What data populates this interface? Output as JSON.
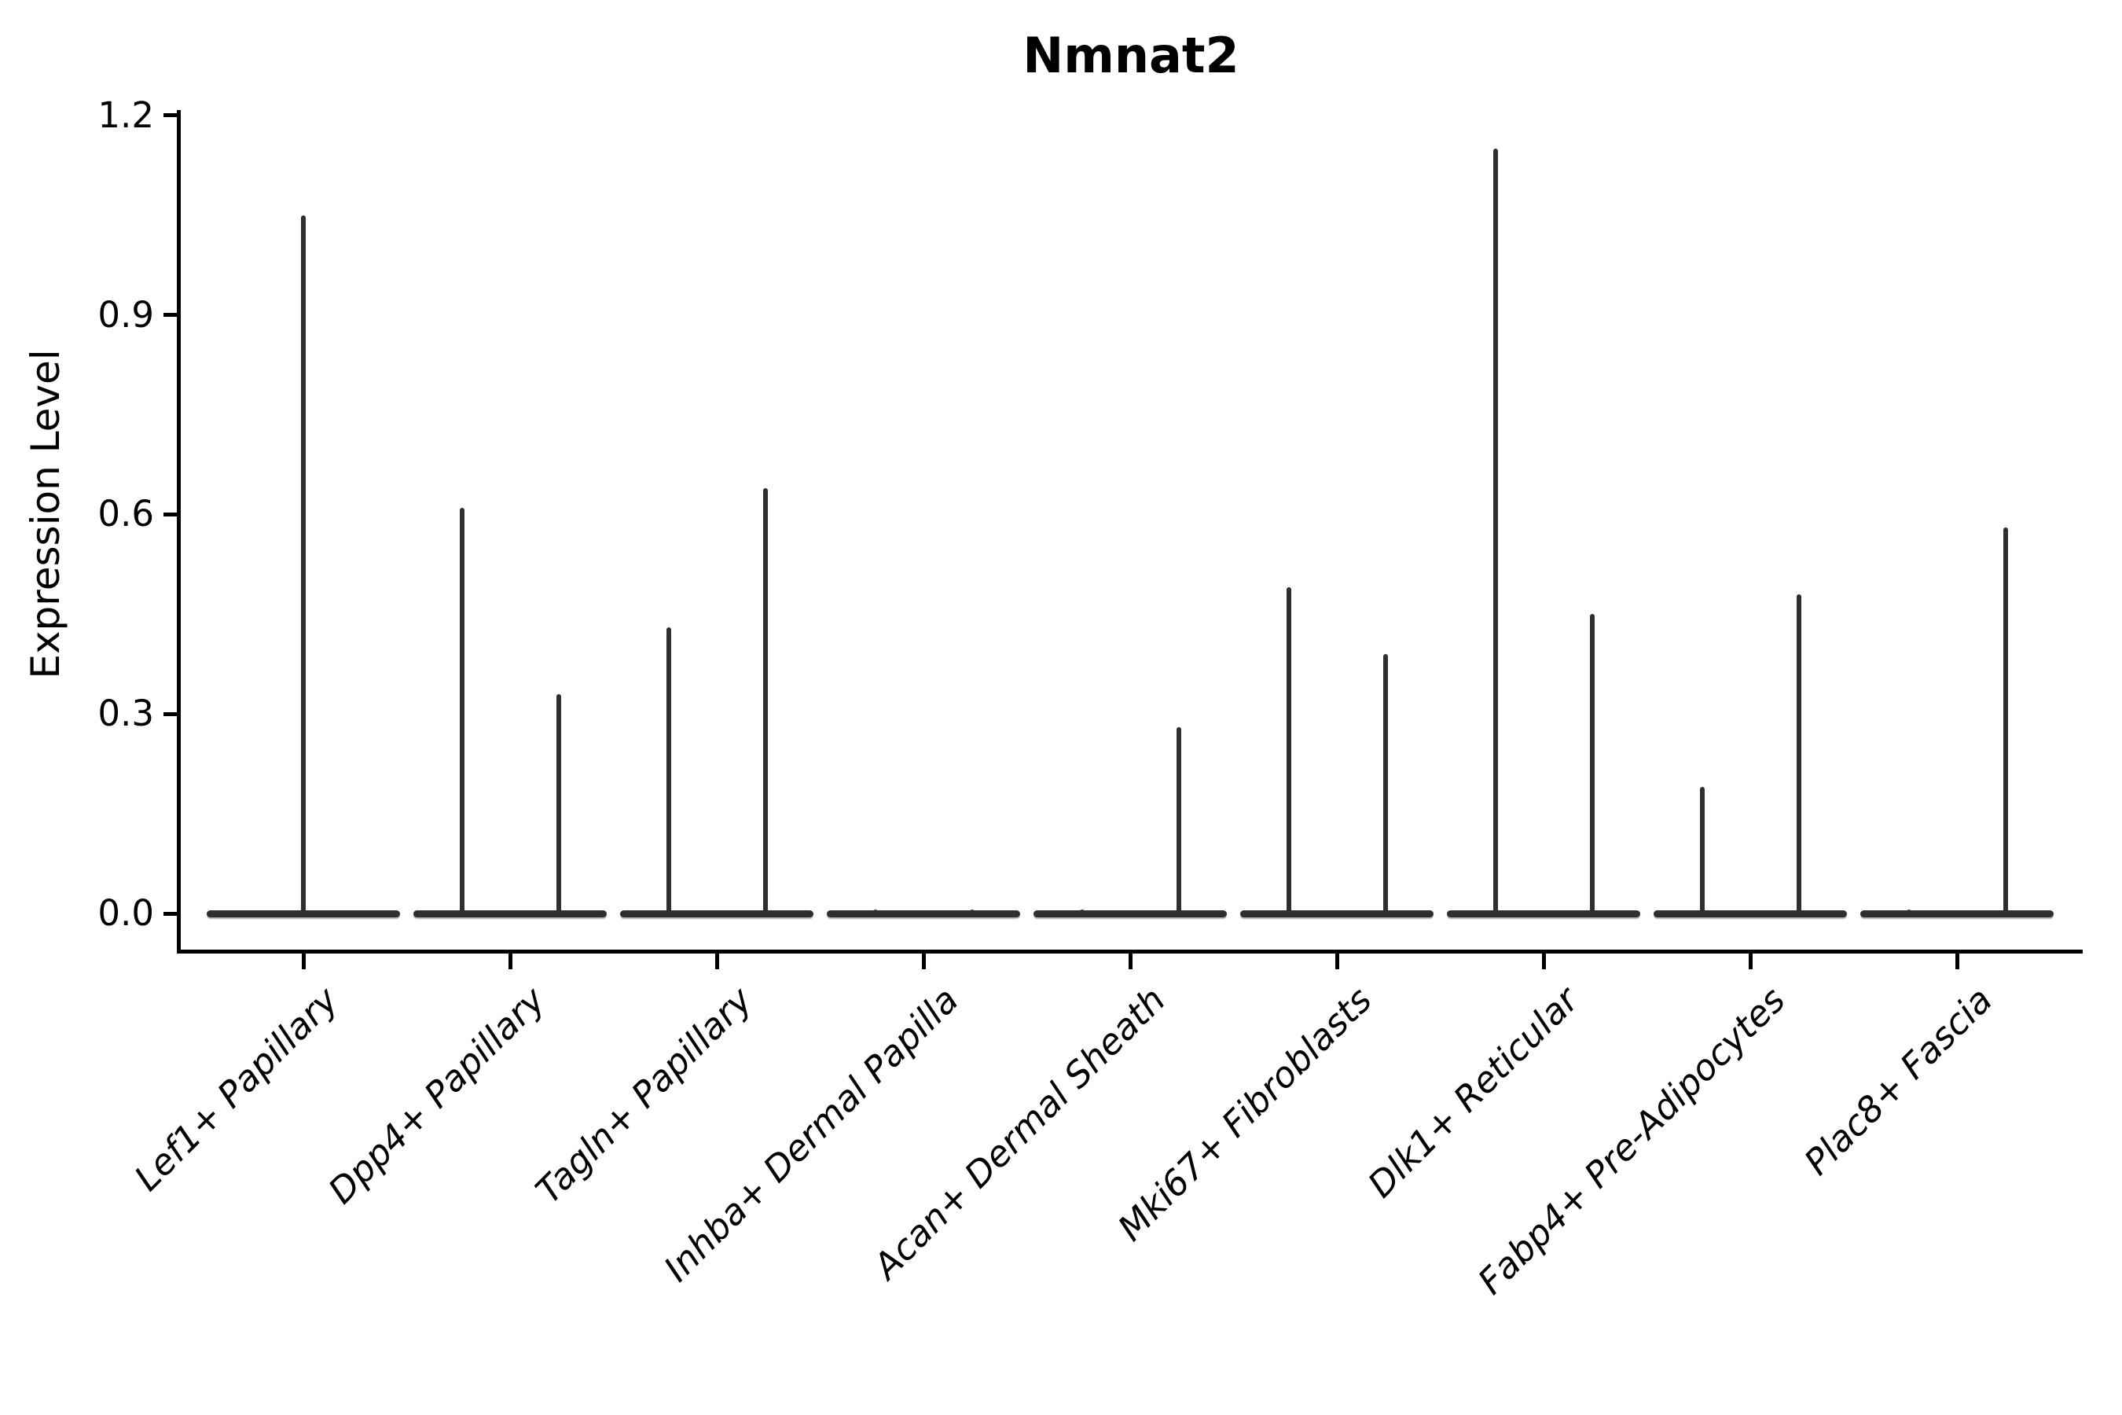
{
  "chart_data": {
    "type": "violin",
    "title": "Nmnat2",
    "ylabel": "Expression Level",
    "xlabel": "",
    "ylim": [
      0,
      1.2
    ],
    "yticks": [
      "0.0",
      "0.3",
      "0.6",
      "0.9",
      "1.2"
    ],
    "grid": false,
    "legend": "none",
    "line_color": "#2f2f2f",
    "axis_color": "#000000",
    "background_color": "#ffffff",
    "categories": [
      "Lef1+ Papillary",
      "Dpp4+ Papillary",
      "Tagln+ Papillary",
      "Inhba+ Dermal Papilla",
      "Acan+ Dermal Sheath",
      "Mki67+ Fibroblasts",
      "Dlk1+ Reticular",
      "Fabp4+ Pre-Adipocytes",
      "Plac8+ Fascia"
    ],
    "series": [
      {
        "category": "Lef1+ Papillary",
        "violins": [
          {
            "position": "full",
            "max_expression": 1.05
          }
        ]
      },
      {
        "category": "Dpp4+ Papillary",
        "violins": [
          {
            "position": "left",
            "max_expression": 0.61
          },
          {
            "position": "right",
            "max_expression": 0.33
          }
        ]
      },
      {
        "category": "Tagln+ Papillary",
        "violins": [
          {
            "position": "left",
            "max_expression": 0.43
          },
          {
            "position": "right",
            "max_expression": 0.64
          }
        ]
      },
      {
        "category": "Inhba+ Dermal Papilla",
        "violins": [
          {
            "position": "left",
            "max_expression": 0.0
          },
          {
            "position": "right",
            "max_expression": 0.0
          }
        ]
      },
      {
        "category": "Acan+ Dermal Sheath",
        "violins": [
          {
            "position": "left",
            "max_expression": 0.0
          },
          {
            "position": "right",
            "max_expression": 0.28
          }
        ]
      },
      {
        "category": "Mki67+ Fibroblasts",
        "violins": [
          {
            "position": "left",
            "max_expression": 0.49
          },
          {
            "position": "right",
            "max_expression": 0.39
          }
        ]
      },
      {
        "category": "Dlk1+ Reticular",
        "violins": [
          {
            "position": "left",
            "max_expression": 1.15
          },
          {
            "position": "right",
            "max_expression": 0.45
          }
        ]
      },
      {
        "category": "Fabp4+ Pre-Adipocytes",
        "violins": [
          {
            "position": "left",
            "max_expression": 0.19
          },
          {
            "position": "right",
            "max_expression": 0.48
          }
        ]
      },
      {
        "category": "Plac8+ Fascia",
        "violins": [
          {
            "position": "left",
            "max_expression": 0.0
          },
          {
            "position": "right",
            "max_expression": 0.58
          }
        ]
      }
    ]
  }
}
